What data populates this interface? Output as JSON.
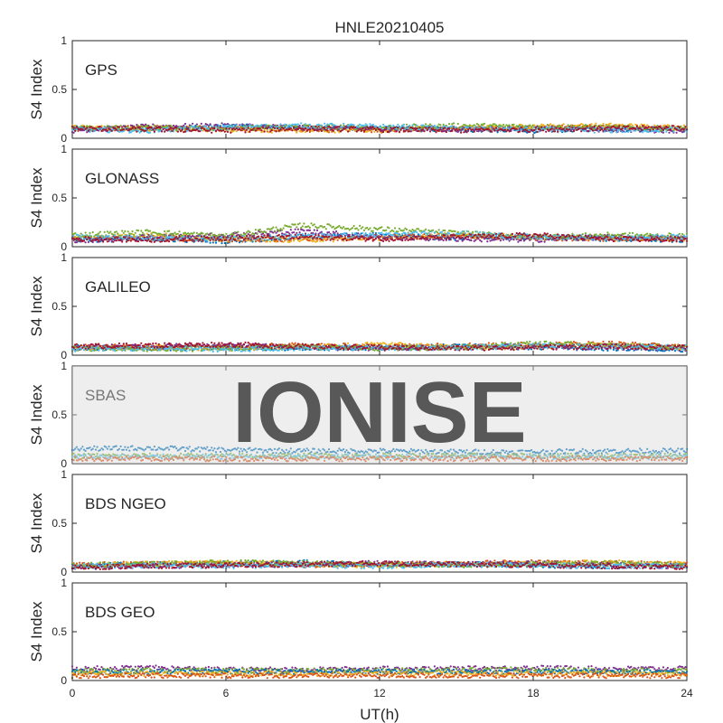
{
  "figure": {
    "title": "HNLE20210405",
    "xlabel": "UT(h)",
    "watermark": "IONISE"
  },
  "chart_data": {
    "type": "scatter",
    "title": "HNLE20210405",
    "xlabel": "UT(h)",
    "ylabel": "S4 Index",
    "xlim": [
      0,
      24
    ],
    "ylim": [
      0,
      1
    ],
    "xticks": [
      "0",
      "6",
      "12",
      "18",
      "24"
    ],
    "yticks": [
      "0",
      "0.5",
      "1"
    ],
    "grid": false,
    "colors": [
      "#0072BD",
      "#D95319",
      "#EDB120",
      "#7E2F8E",
      "#77AC30",
      "#4DBEEE",
      "#A2142F"
    ],
    "panels": [
      {
        "name": "GPS",
        "ylabel": "S4 Index",
        "series": [
          {
            "color": "#0072BD",
            "x": [
              0,
              3,
              6,
              9,
              12,
              15,
              18,
              21,
              24
            ],
            "y": [
              0.1,
              0.09,
              0.12,
              0.11,
              0.1,
              0.09,
              0.08,
              0.1,
              0.09
            ]
          },
          {
            "color": "#D95319",
            "x": [
              0,
              3,
              6,
              9,
              12,
              15,
              18,
              21,
              24
            ],
            "y": [
              0.09,
              0.11,
              0.1,
              0.09,
              0.08,
              0.1,
              0.11,
              0.12,
              0.1
            ]
          },
          {
            "color": "#EDB120",
            "x": [
              0,
              3,
              6,
              9,
              12,
              15,
              18,
              21,
              24
            ],
            "y": [
              0.11,
              0.1,
              0.09,
              0.08,
              0.09,
              0.1,
              0.12,
              0.13,
              0.11
            ]
          },
          {
            "color": "#7E2F8E",
            "x": [
              0,
              3,
              6,
              9,
              12,
              15,
              18,
              21,
              24
            ],
            "y": [
              0.08,
              0.12,
              0.13,
              0.11,
              0.1,
              0.09,
              0.1,
              0.09,
              0.08
            ]
          },
          {
            "color": "#77AC30",
            "x": [
              0,
              3,
              6,
              9,
              12,
              15,
              18,
              21,
              24
            ],
            "y": [
              0.1,
              0.11,
              0.1,
              0.12,
              0.11,
              0.13,
              0.12,
              0.11,
              0.1
            ]
          },
          {
            "color": "#4DBEEE",
            "x": [
              0,
              3,
              6,
              9,
              12,
              15,
              18,
              21,
              24
            ],
            "y": [
              0.09,
              0.08,
              0.11,
              0.13,
              0.12,
              0.1,
              0.09,
              0.08,
              0.09
            ]
          },
          {
            "color": "#A2142F",
            "x": [
              0,
              3,
              6,
              9,
              12,
              15,
              18,
              21,
              24
            ],
            "y": [
              0.1,
              0.09,
              0.08,
              0.1,
              0.09,
              0.08,
              0.09,
              0.1,
              0.11
            ]
          }
        ]
      },
      {
        "name": "GLONASS",
        "ylabel": "S4 Index",
        "series": [
          {
            "color": "#0072BD",
            "x": [
              0,
              3,
              6,
              9,
              12,
              15,
              18,
              21,
              24
            ],
            "y": [
              0.07,
              0.08,
              0.06,
              0.1,
              0.12,
              0.09,
              0.1,
              0.08,
              0.07
            ]
          },
          {
            "color": "#D95319",
            "x": [
              0,
              3,
              6,
              9,
              12,
              15,
              18,
              21,
              24
            ],
            "y": [
              0.08,
              0.09,
              0.07,
              0.08,
              0.1,
              0.11,
              0.09,
              0.08,
              0.09
            ]
          },
          {
            "color": "#EDB120",
            "x": [
              0,
              3,
              6,
              9,
              12,
              15,
              18,
              21,
              24
            ],
            "y": [
              0.09,
              0.12,
              0.08,
              0.07,
              0.09,
              0.12,
              0.1,
              0.09,
              0.08
            ]
          },
          {
            "color": "#7E2F8E",
            "x": [
              0,
              3,
              6,
              9,
              12,
              15,
              18,
              21,
              24
            ],
            "y": [
              0.06,
              0.1,
              0.12,
              0.16,
              0.1,
              0.08,
              0.07,
              0.1,
              0.09
            ]
          },
          {
            "color": "#77AC30",
            "x": [
              0,
              3,
              6,
              9,
              12,
              15,
              18,
              21,
              24
            ],
            "y": [
              0.12,
              0.15,
              0.11,
              0.22,
              0.18,
              0.14,
              0.1,
              0.12,
              0.11
            ]
          },
          {
            "color": "#4DBEEE",
            "x": [
              0,
              3,
              6,
              9,
              12,
              15,
              18,
              21,
              24
            ],
            "y": [
              0.1,
              0.09,
              0.08,
              0.11,
              0.12,
              0.14,
              0.1,
              0.09,
              0.1
            ]
          },
          {
            "color": "#A2142F",
            "x": [
              0,
              3,
              6,
              9,
              12,
              15,
              18,
              21,
              24
            ],
            "y": [
              0.08,
              0.07,
              0.09,
              0.1,
              0.08,
              0.1,
              0.12,
              0.08,
              0.07
            ]
          }
        ]
      },
      {
        "name": "GALILEO",
        "ylabel": "S4 Index",
        "series": [
          {
            "color": "#0072BD",
            "x": [
              0,
              3,
              6,
              9,
              12,
              15,
              18,
              21,
              24
            ],
            "y": [
              0.08,
              0.07,
              0.08,
              0.07,
              0.08,
              0.09,
              0.08,
              0.07,
              0.06
            ]
          },
          {
            "color": "#D95319",
            "x": [
              0,
              3,
              6,
              9,
              12,
              15,
              18,
              21,
              24
            ],
            "y": [
              0.09,
              0.08,
              0.09,
              0.1,
              0.09,
              0.1,
              0.11,
              0.12,
              0.08
            ]
          },
          {
            "color": "#EDB120",
            "x": [
              0,
              3,
              6,
              9,
              12,
              15,
              18,
              21,
              24
            ],
            "y": [
              0.07,
              0.08,
              0.07,
              0.09,
              0.11,
              0.08,
              0.09,
              0.1,
              0.07
            ]
          },
          {
            "color": "#7E2F8E",
            "x": [
              0,
              3,
              6,
              9,
              12,
              15,
              18,
              21,
              24
            ],
            "y": [
              0.08,
              0.09,
              0.1,
              0.08,
              0.07,
              0.08,
              0.09,
              0.08,
              0.07
            ]
          },
          {
            "color": "#77AC30",
            "x": [
              0,
              3,
              6,
              9,
              12,
              15,
              18,
              21,
              24
            ],
            "y": [
              0.07,
              0.06,
              0.07,
              0.08,
              0.07,
              0.08,
              0.12,
              0.1,
              0.08
            ]
          },
          {
            "color": "#4DBEEE",
            "x": [
              0,
              3,
              6,
              9,
              12,
              15,
              18,
              21,
              24
            ],
            "y": [
              0.06,
              0.07,
              0.06,
              0.07,
              0.08,
              0.07,
              0.1,
              0.09,
              0.08
            ]
          },
          {
            "color": "#A2142F",
            "x": [
              0,
              3,
              6,
              9,
              12,
              15,
              18,
              21,
              24
            ],
            "y": [
              0.09,
              0.1,
              0.11,
              0.09,
              0.08,
              0.07,
              0.08,
              0.09,
              0.08
            ]
          }
        ]
      },
      {
        "name": "SBAS",
        "ylabel": "S4 Index",
        "series": [
          {
            "color": "#0072BD",
            "x": [
              0,
              3,
              6,
              9,
              12,
              15,
              18,
              21,
              24
            ],
            "y": [
              0.15,
              0.16,
              0.14,
              0.13,
              0.13,
              0.12,
              0.12,
              0.13,
              0.13
            ]
          },
          {
            "color": "#77AC30",
            "x": [
              0,
              3,
              6,
              9,
              12,
              15,
              18,
              21,
              24
            ],
            "y": [
              0.08,
              0.08,
              0.08,
              0.08,
              0.08,
              0.08,
              0.08,
              0.08,
              0.08
            ]
          },
          {
            "color": "#4DBEEE",
            "x": [
              0,
              3,
              6,
              9,
              12,
              15,
              18,
              21,
              24
            ],
            "y": [
              0.07,
              0.07,
              0.07,
              0.07,
              0.07,
              0.07,
              0.07,
              0.07,
              0.07
            ]
          },
          {
            "color": "#D95319",
            "x": [
              0,
              3,
              6,
              9,
              12,
              15,
              18,
              21,
              24
            ],
            "y": [
              0.05,
              0.05,
              0.05,
              0.05,
              0.05,
              0.05,
              0.05,
              0.05,
              0.05
            ]
          }
        ]
      },
      {
        "name": "BDS NGEO",
        "ylabel": "S4 Index",
        "series": [
          {
            "color": "#0072BD",
            "x": [
              0,
              3,
              6,
              9,
              12,
              15,
              18,
              21,
              24
            ],
            "y": [
              0.06,
              0.08,
              0.09,
              0.1,
              0.07,
              0.08,
              0.07,
              0.06,
              0.07
            ]
          },
          {
            "color": "#D95319",
            "x": [
              0,
              3,
              6,
              9,
              12,
              15,
              18,
              21,
              24
            ],
            "y": [
              0.07,
              0.09,
              0.08,
              0.07,
              0.08,
              0.09,
              0.1,
              0.09,
              0.08
            ]
          },
          {
            "color": "#EDB120",
            "x": [
              0,
              3,
              6,
              9,
              12,
              15,
              18,
              21,
              24
            ],
            "y": [
              0.06,
              0.09,
              0.1,
              0.08,
              0.07,
              0.08,
              0.09,
              0.1,
              0.08
            ]
          },
          {
            "color": "#7E2F8E",
            "x": [
              0,
              3,
              6,
              9,
              12,
              15,
              18,
              21,
              24
            ],
            "y": [
              0.05,
              0.06,
              0.07,
              0.08,
              0.09,
              0.08,
              0.09,
              0.07,
              0.06
            ]
          },
          {
            "color": "#77AC30",
            "x": [
              0,
              3,
              6,
              9,
              12,
              15,
              18,
              21,
              24
            ],
            "y": [
              0.07,
              0.08,
              0.1,
              0.09,
              0.08,
              0.07,
              0.08,
              0.09,
              0.07
            ]
          },
          {
            "color": "#4DBEEE",
            "x": [
              0,
              3,
              6,
              9,
              12,
              15,
              18,
              21,
              24
            ],
            "y": [
              0.06,
              0.07,
              0.06,
              0.07,
              0.06,
              0.08,
              0.07,
              0.06,
              0.06
            ]
          },
          {
            "color": "#A2142F",
            "x": [
              0,
              3,
              6,
              9,
              12,
              15,
              18,
              21,
              24
            ],
            "y": [
              0.05,
              0.06,
              0.07,
              0.08,
              0.09,
              0.08,
              0.07,
              0.06,
              0.05
            ]
          }
        ]
      },
      {
        "name": "BDS GEO",
        "ylabel": "S4 Index",
        "series": [
          {
            "color": "#7E2F8E",
            "x": [
              0,
              3,
              6,
              9,
              12,
              15,
              18,
              21,
              24
            ],
            "y": [
              0.12,
              0.13,
              0.11,
              0.11,
              0.12,
              0.12,
              0.13,
              0.12,
              0.12
            ]
          },
          {
            "color": "#77AC30",
            "x": [
              0,
              3,
              6,
              9,
              12,
              15,
              18,
              21,
              24
            ],
            "y": [
              0.1,
              0.1,
              0.1,
              0.1,
              0.1,
              0.11,
              0.11,
              0.1,
              0.1
            ]
          },
          {
            "color": "#0072BD",
            "x": [
              0,
              3,
              6,
              9,
              12,
              15,
              18,
              21,
              24
            ],
            "y": [
              0.09,
              0.09,
              0.09,
              0.09,
              0.09,
              0.09,
              0.09,
              0.09,
              0.09
            ]
          },
          {
            "color": "#EDB120",
            "x": [
              0,
              3,
              6,
              9,
              12,
              15,
              18,
              21,
              24
            ],
            "y": [
              0.07,
              0.07,
              0.07,
              0.07,
              0.07,
              0.07,
              0.07,
              0.07,
              0.07
            ]
          },
          {
            "color": "#D95319",
            "x": [
              0,
              3,
              6,
              9,
              12,
              15,
              18,
              21,
              24
            ],
            "y": [
              0.05,
              0.05,
              0.05,
              0.05,
              0.05,
              0.05,
              0.05,
              0.05,
              0.05
            ]
          }
        ]
      }
    ]
  }
}
